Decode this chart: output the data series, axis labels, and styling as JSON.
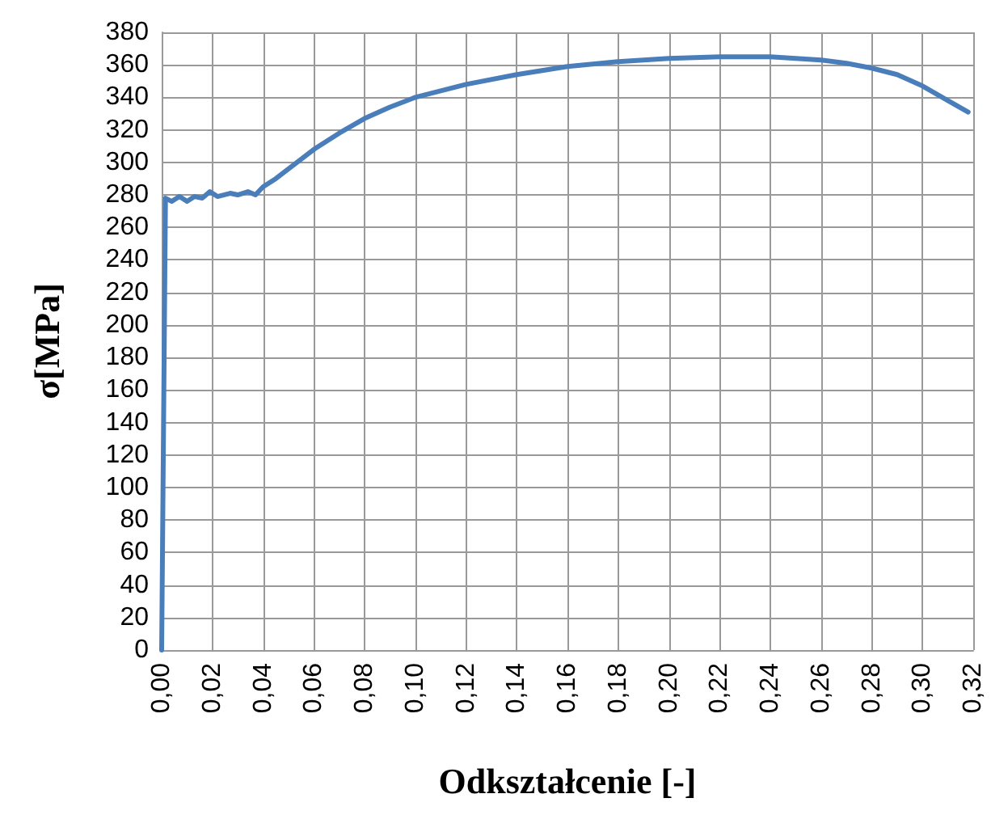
{
  "chart_data": {
    "type": "line",
    "xlabel": "Odkształcenie [-]",
    "ylabel": "σ[MPa]",
    "x": [
      0,
      0.0015,
      0.004,
      0.007,
      0.01,
      0.013,
      0.016,
      0.019,
      0.022,
      0.027,
      0.03,
      0.034,
      0.037,
      0.04,
      0.045,
      0.05,
      0.06,
      0.07,
      0.08,
      0.09,
      0.1,
      0.12,
      0.14,
      0.16,
      0.18,
      0.2,
      0.22,
      0.24,
      0.26,
      0.27,
      0.28,
      0.29,
      0.3,
      0.31,
      0.318
    ],
    "series": [
      {
        "color": "#4a7ebb",
        "values": [
          0,
          278,
          276,
          279,
          276,
          279,
          278,
          282,
          279,
          281,
          280,
          282,
          280,
          285,
          290,
          296,
          308,
          318,
          327,
          334,
          340,
          348,
          354,
          359,
          362,
          364,
          365,
          365,
          363,
          361,
          358,
          354,
          347,
          338,
          331
        ]
      }
    ],
    "xlim": [
      0,
      0.32
    ],
    "xticks": [
      {
        "value": 0,
        "label": "0,00"
      },
      {
        "value": 0.02,
        "label": "0,02"
      },
      {
        "value": 0.04,
        "label": "0,04"
      },
      {
        "value": 0.06,
        "label": "0,06"
      },
      {
        "value": 0.08,
        "label": "0,08"
      },
      {
        "value": 0.1,
        "label": "0,10"
      },
      {
        "value": 0.12,
        "label": "0,12"
      },
      {
        "value": 0.14,
        "label": "0,14"
      },
      {
        "value": 0.16,
        "label": "0,16"
      },
      {
        "value": 0.18,
        "label": "0,18"
      },
      {
        "value": 0.2,
        "label": "0,20"
      },
      {
        "value": 0.22,
        "label": "0,22"
      },
      {
        "value": 0.24,
        "label": "0,24"
      },
      {
        "value": 0.26,
        "label": "0,26"
      },
      {
        "value": 0.28,
        "label": "0,28"
      },
      {
        "value": 0.3,
        "label": "0,30"
      },
      {
        "value": 0.32,
        "label": "0,32"
      }
    ],
    "ylim": [
      0,
      380
    ],
    "yticks": [
      0,
      20,
      40,
      60,
      80,
      100,
      120,
      140,
      160,
      180,
      200,
      220,
      240,
      260,
      280,
      300,
      320,
      340,
      360,
      380
    ],
    "grid": true,
    "marker": "none",
    "line_style": "solid"
  }
}
